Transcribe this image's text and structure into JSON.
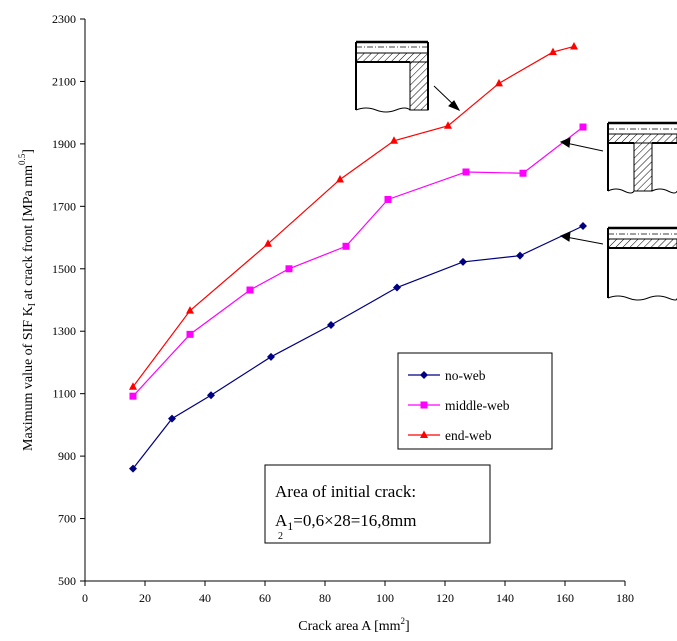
{
  "chart_data": {
    "type": "line",
    "xlabel": "Crack area A [mm",
    "xlabel_sup": "2",
    "xlabel_tail": "]",
    "ylabel_main": "Maximum value of SIF K",
    "ylabel_sub": "I",
    "ylabel_tail": " at crack front [MPa mm",
    "ylabel_sup": "0.5",
    "ylabel_end": "]",
    "xlim": [
      0,
      180
    ],
    "ylim": [
      500,
      2300
    ],
    "x_ticks": [
      0,
      20,
      40,
      60,
      80,
      100,
      120,
      140,
      160,
      180
    ],
    "y_ticks": [
      500,
      700,
      900,
      1100,
      1300,
      1500,
      1700,
      1900,
      2100,
      2300
    ],
    "grid": false,
    "legend_position": "lower-right inside plot",
    "series": [
      {
        "name": "no-web",
        "color": "#000080",
        "marker": "diamond",
        "points": [
          [
            16,
            860
          ],
          [
            29,
            1020
          ],
          [
            42,
            1095
          ],
          [
            62,
            1218
          ],
          [
            82,
            1320
          ],
          [
            104,
            1440
          ],
          [
            126,
            1522
          ],
          [
            145,
            1542
          ],
          [
            166,
            1637
          ]
        ]
      },
      {
        "name": "middle-web",
        "color": "#ff00ff",
        "marker": "square",
        "points": [
          [
            16,
            1092
          ],
          [
            35,
            1290
          ],
          [
            55,
            1432
          ],
          [
            68,
            1500
          ],
          [
            87,
            1572
          ],
          [
            101,
            1722
          ],
          [
            127,
            1810
          ],
          [
            146,
            1806
          ],
          [
            166,
            1954
          ]
        ]
      },
      {
        "name": "end-web",
        "color": "#ff0000",
        "marker": "triangle",
        "points": [
          [
            16,
            1122
          ],
          [
            35,
            1366
          ],
          [
            61,
            1580
          ],
          [
            85,
            1786
          ],
          [
            103,
            1910
          ],
          [
            121,
            1958
          ],
          [
            138,
            2094
          ],
          [
            156,
            2194
          ],
          [
            163,
            2212
          ]
        ]
      }
    ],
    "annotation": {
      "line1": "Area of initial crack:",
      "line2_a": "A",
      "line2_sub": "1",
      "line2_b": "=0,6×28=16,8mm",
      "line3": "2"
    }
  }
}
